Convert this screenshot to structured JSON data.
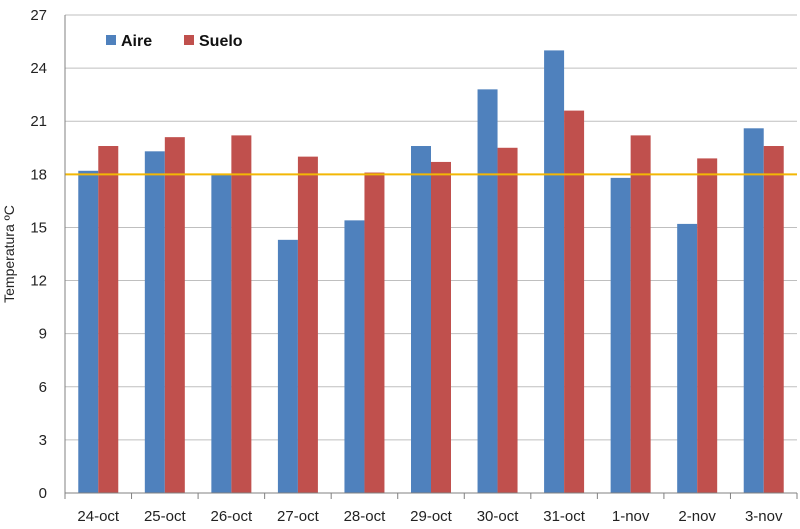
{
  "chart_data": {
    "type": "bar",
    "categories": [
      "24-oct",
      "25-oct",
      "26-oct",
      "27-oct",
      "28-oct",
      "29-oct",
      "30-oct",
      "31-oct",
      "1-nov",
      "2-nov",
      "3-nov"
    ],
    "series": [
      {
        "name": "Aire",
        "color": "#4F81BD",
        "values": [
          18.2,
          19.3,
          18.0,
          14.3,
          15.4,
          19.6,
          22.8,
          25.0,
          17.8,
          15.2,
          20.6
        ]
      },
      {
        "name": "Suelo",
        "color": "#C0504D",
        "values": [
          19.6,
          20.1,
          20.2,
          19.0,
          18.1,
          18.7,
          19.5,
          21.6,
          20.2,
          18.9,
          19.6
        ]
      }
    ],
    "ylabel": "Temperatura ºC",
    "xlabel": "",
    "title": "",
    "ylim": [
      0,
      27
    ],
    "yticks": [
      0,
      3,
      6,
      9,
      12,
      15,
      18,
      21,
      24,
      27
    ],
    "reference_line": {
      "value": 18,
      "color": "#F2B705"
    },
    "grid": true,
    "legend": "top-left"
  }
}
